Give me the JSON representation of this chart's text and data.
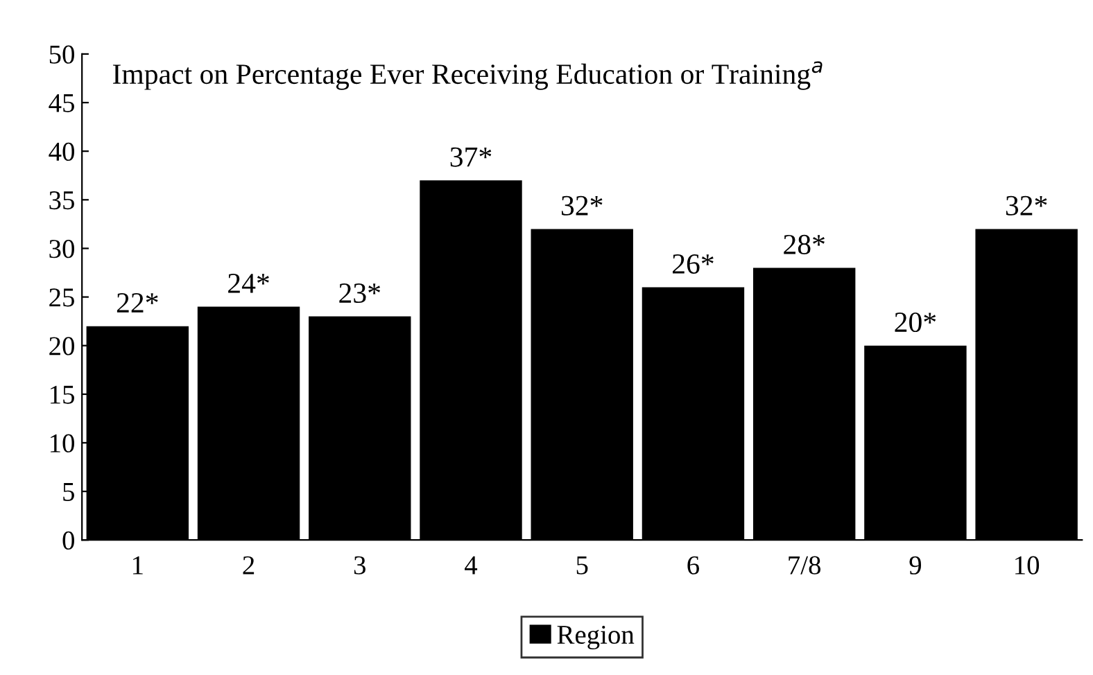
{
  "chart_data": {
    "type": "bar",
    "title": "Impact on Percentage Ever Receiving Education or Training$^{a}$",
    "categories": [
      "1",
      "2",
      "3",
      "4",
      "5",
      "6",
      "7/8",
      "9",
      "10"
    ],
    "series": [
      {
        "name": "Region",
        "color": "#000000",
        "values": [
          22,
          24,
          23,
          37,
          32,
          26,
          28,
          20,
          32
        ],
        "value_labels": [
          "22*",
          "24*",
          "23*",
          "37*",
          "32*",
          "26*",
          "28*",
          "20*",
          "32*"
        ]
      }
    ],
    "ylim": [
      0,
      50
    ],
    "yticks": [
      0,
      5,
      10,
      15,
      20,
      25,
      30,
      35,
      40,
      45,
      50
    ],
    "grid": false,
    "legend": "bottom"
  }
}
